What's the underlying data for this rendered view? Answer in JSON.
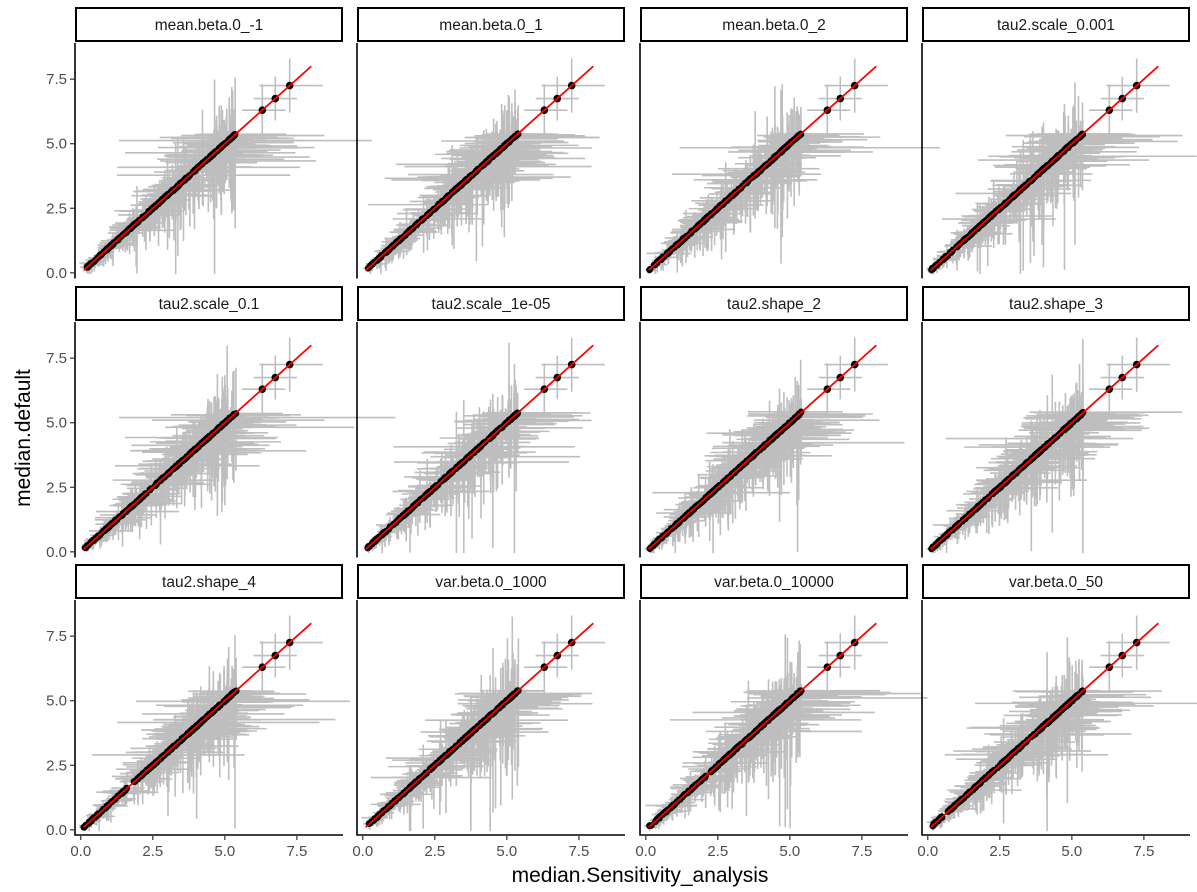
{
  "chart_data": {
    "type": "scatter",
    "facet_layout": "3 rows x 4 columns",
    "xlabel": "median.Sensitivity_analysis",
    "ylabel": "median.default",
    "xlim": [
      -0.2,
      9.1
    ],
    "ylim": [
      -0.2,
      8.9
    ],
    "x_ticks": [
      "0.0",
      "2.5",
      "5.0",
      "7.5"
    ],
    "y_ticks": [
      "0.0",
      "2.5",
      "5.0",
      "7.5"
    ],
    "grid": false,
    "identity_line": {
      "from": [
        0.1,
        0.1
      ],
      "to": [
        8.0,
        8.0
      ],
      "color": "#ff0000"
    },
    "colors": {
      "points": "#000000",
      "error_bars": "#bebebe",
      "identity": "#ff0000",
      "strip_border": "#000000",
      "axis": "#000000"
    },
    "panels": [
      {
        "label": "mean.beta.0_-1"
      },
      {
        "label": "mean.beta.0_1"
      },
      {
        "label": "mean.beta.0_2"
      },
      {
        "label": "tau2.scale_0.001"
      },
      {
        "label": "tau2.scale_0.1"
      },
      {
        "label": "tau2.scale_1e-05"
      },
      {
        "label": "tau2.shape_2"
      },
      {
        "label": "tau2.shape_3"
      },
      {
        "label": "tau2.shape_4"
      },
      {
        "label": "var.beta.0_1000"
      },
      {
        "label": "var.beta.0_10000"
      },
      {
        "label": "var.beta.0_50"
      }
    ],
    "dense_points": {
      "x_range": [
        0.1,
        5.4
      ],
      "approx_count": 260
    },
    "sparse_points": [
      {
        "x": 6.3,
        "y": 6.3,
        "x_err": [
          5.6,
          7.1
        ],
        "y_err": [
          5.3,
          7.3
        ]
      },
      {
        "x": 6.75,
        "y": 6.75,
        "x_err": [
          6.0,
          7.5
        ],
        "y_err": [
          5.9,
          7.6
        ]
      },
      {
        "x": 7.25,
        "y": 7.25,
        "x_err": [
          6.2,
          8.4
        ],
        "y_err": [
          6.2,
          8.3
        ]
      }
    ]
  }
}
